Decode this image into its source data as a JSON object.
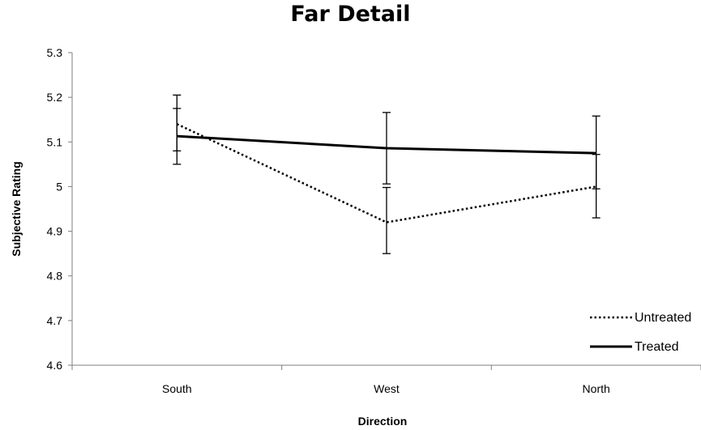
{
  "chart_data": {
    "type": "line",
    "title": "Far Detail",
    "xlabel": "Direction",
    "ylabel": "Subjective Rating",
    "categories": [
      "South",
      "West",
      "North"
    ],
    "ylim": [
      4.6,
      5.3
    ],
    "yticks": [
      "4.6",
      "4.7",
      "4.8",
      "4.9",
      "5",
      "5.1",
      "5.2",
      "5.3"
    ],
    "grid": false,
    "legend_position": "bottom-right",
    "series": [
      {
        "name": "Untreated",
        "style": "dotted",
        "color": "#000000",
        "values": [
          5.14,
          4.92,
          5.0
        ],
        "error_low": [
          5.08,
          4.85,
          4.93
        ],
        "error_high": [
          5.205,
          4.998,
          5.072
        ]
      },
      {
        "name": "Treated",
        "style": "solid",
        "color": "#000000",
        "values": [
          5.113,
          5.086,
          5.075
        ],
        "error_low": [
          5.05,
          5.006,
          4.995
        ],
        "error_high": [
          5.175,
          5.166,
          5.158
        ]
      }
    ]
  }
}
